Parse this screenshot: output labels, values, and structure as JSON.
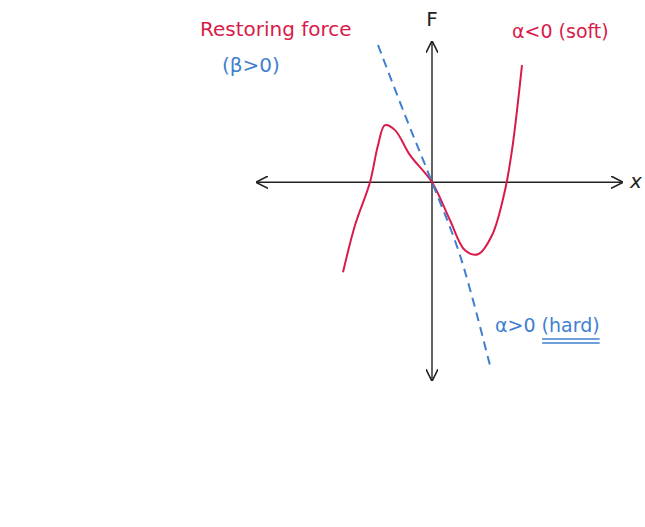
{
  "chart_data": {
    "type": "line",
    "title": "Restoring force",
    "x_label": "x",
    "y_label": "F",
    "xlim": [
      -3.5,
      3.8
    ],
    "ylim": [
      -3.95,
      2.8
    ],
    "tick_labels": false,
    "grid": false,
    "annotations": [
      {
        "text": "(β>0)",
        "color": "#3f7fd0"
      }
    ],
    "color": "#d81b4a",
    "series": [
      {
        "name": "α<0 (soft)",
        "color": "#d81b4a",
        "line_style": "solid",
        "x": [
          -1.78,
          -1.54,
          -1.24,
          -1.08,
          -0.94,
          -0.74,
          -0.44,
          0,
          0.36,
          0.66,
          0.92,
          1.2,
          1.46,
          1.6,
          1.8
        ],
        "values": [
          -1.8,
          -0.86,
          0,
          0.74,
          1.14,
          1.04,
          0.54,
          0,
          -0.76,
          -1.36,
          -1.44,
          -1.06,
          -0.16,
          0.64,
          2.34
        ]
      },
      {
        "name": "α>0 (hard)",
        "color": "#3f7fd0",
        "line_style": "dashed",
        "x": [
          -1.08,
          -0.54,
          0,
          0.56,
          1.16
        ],
        "values": [
          2.74,
          1.34,
          0,
          -1.46,
          -3.66
        ]
      }
    ]
  }
}
